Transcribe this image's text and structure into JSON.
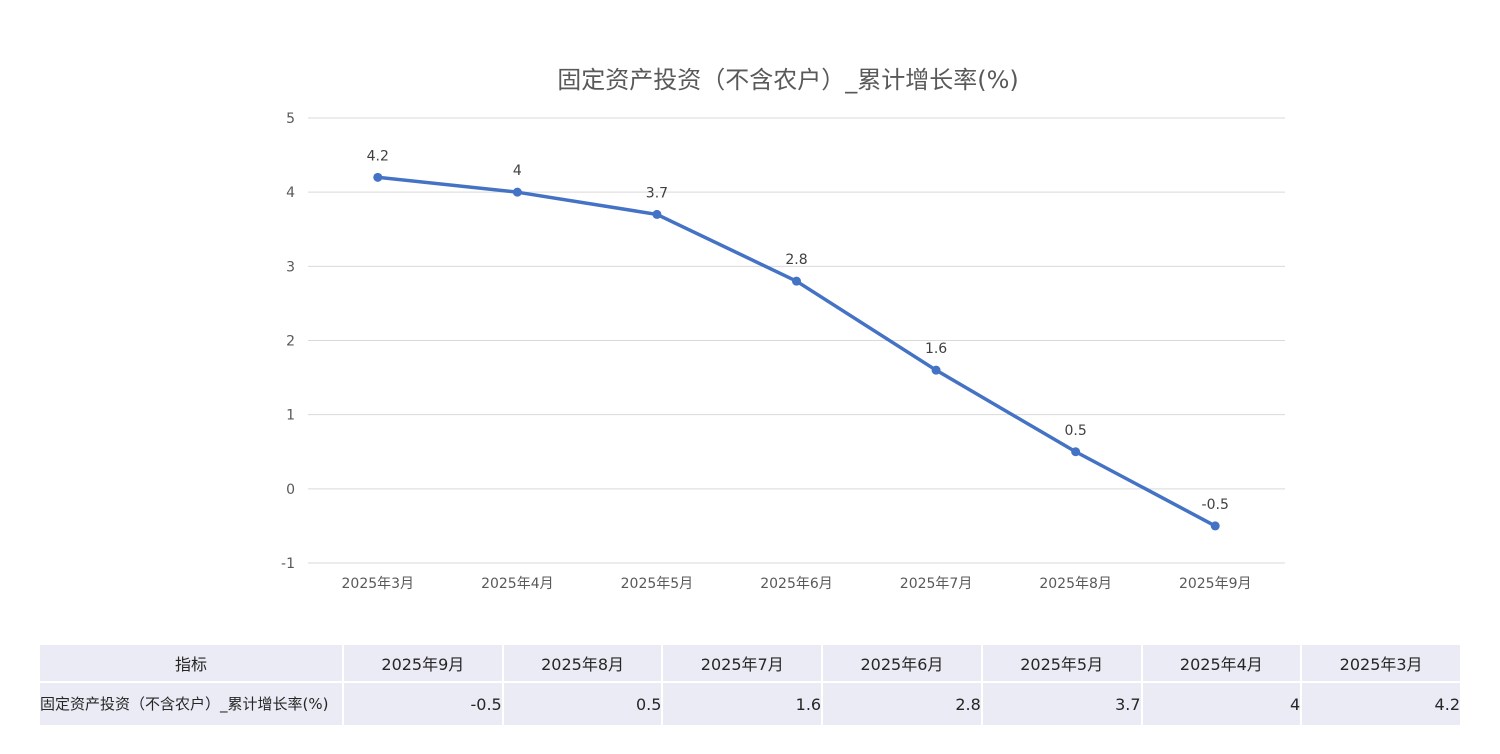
{
  "chart_data": {
    "type": "line",
    "title": "固定资产投资（不含农户）_累计增长率(%)",
    "categories": [
      "2025年3月",
      "2025年4月",
      "2025年5月",
      "2025年6月",
      "2025年7月",
      "2025年8月",
      "2025年9月"
    ],
    "series": [
      {
        "name": "固定资产投资（不含农户）_累计增长率(%)",
        "values": [
          4.2,
          4,
          3.7,
          2.8,
          1.6,
          0.5,
          -0.5
        ],
        "color": "#4472c4"
      }
    ],
    "ylim": [
      -1,
      5
    ],
    "yticks": [
      5,
      4,
      3,
      2,
      1,
      0,
      -1
    ],
    "grid": true,
    "legend": "none",
    "data_labels": true
  },
  "table": {
    "header_label": "指标",
    "columns": [
      "2025年9月",
      "2025年8月",
      "2025年7月",
      "2025年6月",
      "2025年5月",
      "2025年4月",
      "2025年3月"
    ],
    "rows": [
      {
        "label": "固定资产投资（不含农户）_累计增长率(%)",
        "values": [
          "-0.5",
          "0.5",
          "1.6",
          "2.8",
          "3.7",
          "4",
          "4.2"
        ]
      }
    ]
  }
}
